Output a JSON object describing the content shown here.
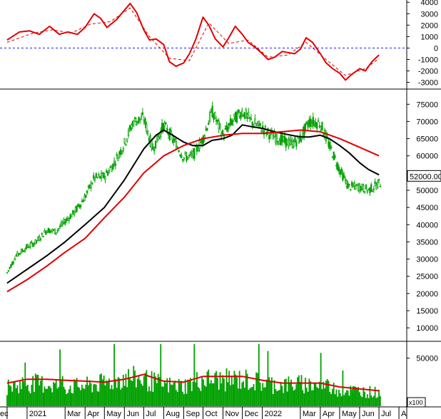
{
  "chart_data": [
    {
      "type": "line",
      "panel": "oscillator",
      "ylim": [
        -3400,
        4200
      ],
      "y_ticks": [
        "4000",
        "3000",
        "2000",
        "1000",
        "0",
        "-1000",
        "-2000",
        "-3000"
      ],
      "y_tick_values": [
        4000,
        3000,
        2000,
        1000,
        0,
        -1000,
        -2000,
        -3000
      ],
      "zero_line": {
        "value": 0,
        "style": "dashed",
        "color": "#1a1aff"
      },
      "series": [
        {
          "role": "main",
          "color": "#e00000",
          "style": "solid",
          "x": [
            "2020-12-01",
            "2020-12-20",
            "2021-01-05",
            "2021-01-20",
            "2021-02-05",
            "2021-02-20",
            "2021-03-05",
            "2021-03-20",
            "2021-04-01",
            "2021-04-15",
            "2021-04-25",
            "2021-05-05",
            "2021-05-20",
            "2021-06-01",
            "2021-06-10",
            "2021-06-20",
            "2021-07-01",
            "2021-07-10",
            "2021-07-20",
            "2021-08-01",
            "2021-08-10",
            "2021-08-20",
            "2021-09-01",
            "2021-09-10",
            "2021-09-20",
            "2021-10-01",
            "2021-10-10",
            "2021-10-20",
            "2021-11-01",
            "2021-11-10",
            "2021-11-20",
            "2021-12-01",
            "2021-12-10",
            "2021-12-20",
            "2022-01-01",
            "2022-01-10",
            "2022-01-20",
            "2022-02-01",
            "2022-02-10",
            "2022-02-20",
            "2022-03-01",
            "2022-03-10",
            "2022-03-20",
            "2022-04-01",
            "2022-04-10",
            "2022-04-20",
            "2022-05-01",
            "2022-05-10",
            "2022-05-20",
            "2022-06-01",
            "2022-06-10",
            "2022-06-20",
            "2022-07-01"
          ],
          "y": [
            700,
            1400,
            1500,
            1200,
            1900,
            1200,
            1400,
            1200,
            1800,
            3000,
            2600,
            1800,
            2500,
            3300,
            3900,
            3100,
            1600,
            700,
            800,
            300,
            -1200,
            -1600,
            -1300,
            -500,
            800,
            2700,
            2000,
            800,
            100,
            900,
            1900,
            1200,
            500,
            100,
            -500,
            -1000,
            -800,
            -300,
            -400,
            -500,
            -100,
            900,
            500,
            -500,
            -1300,
            -1800,
            -2200,
            -2800,
            -2300,
            -1800,
            -2000,
            -1200,
            -600
          ]
        },
        {
          "role": "signal",
          "color": "#e00000",
          "style": "dashed",
          "x": [
            "2020-12-01",
            "2021-01-10",
            "2021-02-10",
            "2021-03-10",
            "2021-04-10",
            "2021-05-10",
            "2021-06-10",
            "2021-07-10",
            "2021-08-10",
            "2021-09-10",
            "2021-10-10",
            "2021-11-10",
            "2021-12-10",
            "2022-01-10",
            "2022-02-10",
            "2022-03-10",
            "2022-04-10",
            "2022-05-10",
            "2022-06-10",
            "2022-07-01"
          ],
          "y": [
            500,
            1300,
            1600,
            1300,
            2100,
            2300,
            3500,
            1000,
            -900,
            -1100,
            2200,
            400,
            700,
            -800,
            -600,
            500,
            -1000,
            -2400,
            -1800,
            -900
          ]
        }
      ]
    },
    {
      "type": "candlestick",
      "panel": "price",
      "ylim": [
        6500,
        79000
      ],
      "y_ticks": [
        "75000",
        "70000",
        "65000",
        "60000",
        "55000",
        "50000",
        "45000",
        "40000",
        "35000",
        "30000",
        "25000",
        "20000",
        "15000",
        "10000"
      ],
      "y_tick_values": [
        75000,
        70000,
        65000,
        60000,
        55000,
        50000,
        45000,
        40000,
        35000,
        30000,
        25000,
        20000,
        15000,
        10000
      ],
      "last_price_label": "52000.00",
      "last_price_value": 52000,
      "up_color": "#00a000",
      "down_color": "#00a000",
      "series": [
        {
          "name": "",
          "role": "price-close",
          "color": "#00a000",
          "x": [
            "2020-12-01",
            "2020-12-15",
            "2021-01-01",
            "2021-01-15",
            "2021-02-01",
            "2021-02-15",
            "2021-03-01",
            "2021-03-15",
            "2021-04-01",
            "2021-04-15",
            "2021-05-01",
            "2021-05-15",
            "2021-06-01",
            "2021-06-15",
            "2021-07-01",
            "2021-07-15",
            "2021-08-01",
            "2021-08-15",
            "2021-09-01",
            "2021-09-15",
            "2021-10-01",
            "2021-10-15",
            "2021-11-01",
            "2021-11-15",
            "2021-12-01",
            "2021-12-15",
            "2022-01-01",
            "2022-01-15",
            "2022-02-01",
            "2022-02-15",
            "2022-03-01",
            "2022-03-15",
            "2022-04-01",
            "2022-04-15",
            "2022-05-01",
            "2022-05-15",
            "2022-06-01",
            "2022-06-15",
            "2022-07-01"
          ],
          "y": [
            26000,
            31000,
            33500,
            35000,
            38500,
            38000,
            41000,
            43500,
            48000,
            53500,
            54000,
            57500,
            63500,
            70000,
            71000,
            62000,
            69000,
            65000,
            59500,
            60000,
            65000,
            73000,
            66000,
            70000,
            73000,
            70000,
            68000,
            66000,
            64500,
            63500,
            65000,
            70000,
            69500,
            63000,
            56000,
            51000,
            51000,
            50000,
            52000
          ]
        },
        {
          "name": "",
          "role": "ma-short",
          "color": "#000000",
          "x": [
            "2020-12-01",
            "2021-01-01",
            "2021-02-01",
            "2021-03-01",
            "2021-04-01",
            "2021-05-01",
            "2021-06-01",
            "2021-07-01",
            "2021-07-20",
            "2021-08-01",
            "2021-08-15",
            "2021-09-01",
            "2021-09-15",
            "2021-10-01",
            "2021-10-15",
            "2021-11-01",
            "2021-11-15",
            "2021-12-01",
            "2021-12-15",
            "2022-01-01",
            "2022-01-20",
            "2022-02-01",
            "2022-02-15",
            "2022-03-01",
            "2022-03-15",
            "2022-04-01",
            "2022-04-15",
            "2022-05-01",
            "2022-05-15",
            "2022-06-01",
            "2022-06-15",
            "2022-07-01"
          ],
          "y": [
            23000,
            27000,
            31000,
            35000,
            40000,
            45000,
            53000,
            62000,
            66000,
            67500,
            66000,
            64000,
            63000,
            63000,
            64500,
            65000,
            66000,
            69000,
            68500,
            68000,
            67000,
            66500,
            66000,
            65500,
            65500,
            66000,
            65000,
            63000,
            61000,
            58000,
            56000,
            54500
          ]
        },
        {
          "name": "",
          "role": "ma-long",
          "color": "#e00000",
          "x": [
            "2020-12-01",
            "2021-01-01",
            "2021-02-01",
            "2021-03-01",
            "2021-04-01",
            "2021-05-01",
            "2021-06-01",
            "2021-07-01",
            "2021-08-01",
            "2021-09-01",
            "2021-10-01",
            "2021-11-01",
            "2021-12-01",
            "2022-01-01",
            "2022-02-01",
            "2022-03-01",
            "2022-04-01",
            "2022-05-01",
            "2022-06-01",
            "2022-07-01"
          ],
          "y": [
            20500,
            24000,
            28000,
            32000,
            36000,
            42000,
            48000,
            55000,
            60000,
            63000,
            65000,
            66000,
            66500,
            66500,
            67000,
            67500,
            67000,
            65000,
            62500,
            60000
          ]
        }
      ]
    },
    {
      "type": "bar",
      "panel": "volume",
      "ylim": [
        0,
        66000
      ],
      "y_ticks": [
        "50000"
      ],
      "y_tick_values": [
        50000
      ],
      "unit_label": "x100",
      "bar_color": "#00a000",
      "series": [
        {
          "name": "",
          "role": "volume",
          "color": "#00a000",
          "x": [
            "2020-12-01",
            "2021-01-01",
            "2021-02-01",
            "2021-03-01",
            "2021-04-01",
            "2021-05-01",
            "2021-06-01",
            "2021-07-01",
            "2021-08-01",
            "2021-09-01",
            "2021-10-01",
            "2021-11-01",
            "2021-12-01",
            "2022-01-01",
            "2022-02-01",
            "2022-03-01",
            "2022-04-01",
            "2022-05-01",
            "2022-06-01",
            "2022-07-01"
          ],
          "y": [
            20000,
            24000,
            23000,
            20000,
            21000,
            24000,
            30000,
            28000,
            22000,
            21000,
            28000,
            27000,
            28000,
            24000,
            22000,
            23000,
            22000,
            17000,
            16000,
            14000
          ]
        },
        {
          "name": "",
          "role": "volume-ma",
          "color": "#e00000",
          "x": [
            "2020-12-01",
            "2021-01-01",
            "2021-02-01",
            "2021-03-01",
            "2021-04-01",
            "2021-05-01",
            "2021-06-01",
            "2021-07-01",
            "2021-08-01",
            "2021-09-01",
            "2021-10-01",
            "2021-11-01",
            "2021-12-01",
            "2022-01-01",
            "2022-02-01",
            "2022-03-01",
            "2022-04-01",
            "2022-05-01",
            "2022-06-01",
            "2022-07-01"
          ],
          "y": [
            24000,
            28000,
            28000,
            27000,
            26000,
            25000,
            28000,
            33000,
            26000,
            25000,
            31000,
            31000,
            31000,
            27000,
            24000,
            24000,
            24000,
            20000,
            18000,
            16000
          ]
        }
      ]
    }
  ],
  "x_axis": {
    "labels": [
      "ec",
      "2021",
      "Mar",
      "Apr",
      "May",
      "Jun",
      "Jul",
      "Aug",
      "Sep",
      "Oct",
      "Nov",
      "Dec",
      "2022",
      "Mar",
      "Apr",
      "May",
      "Jun",
      "Jul",
      "A"
    ],
    "dates": [
      "2020-12-01",
      "2021-01-01",
      "2021-03-01",
      "2021-04-01",
      "2021-05-01",
      "2021-06-01",
      "2021-07-01",
      "2021-08-01",
      "2021-09-01",
      "2021-10-01",
      "2021-11-01",
      "2021-12-01",
      "2022-01-01",
      "2022-03-01",
      "2022-04-01",
      "2022-05-01",
      "2022-06-01",
      "2022-07-01",
      "2022-08-01"
    ]
  }
}
